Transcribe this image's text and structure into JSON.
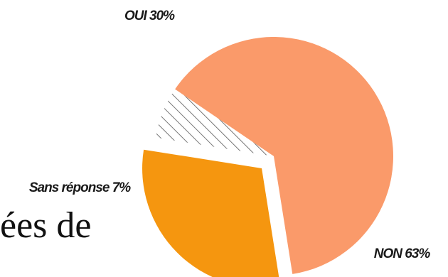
{
  "background_text": "ées de",
  "chart_data": {
    "type": "pie",
    "slices": [
      {
        "label": "OUI 30%",
        "value": 30,
        "color": "#f5960f",
        "pattern": "solid"
      },
      {
        "label": "NON 63%",
        "value": 63,
        "color": "#fa9a6a",
        "pattern": "solid"
      },
      {
        "label": "Sans réponse 7%",
        "value": 7,
        "color": "#777777",
        "pattern": "hatch"
      }
    ],
    "legend": "none"
  }
}
